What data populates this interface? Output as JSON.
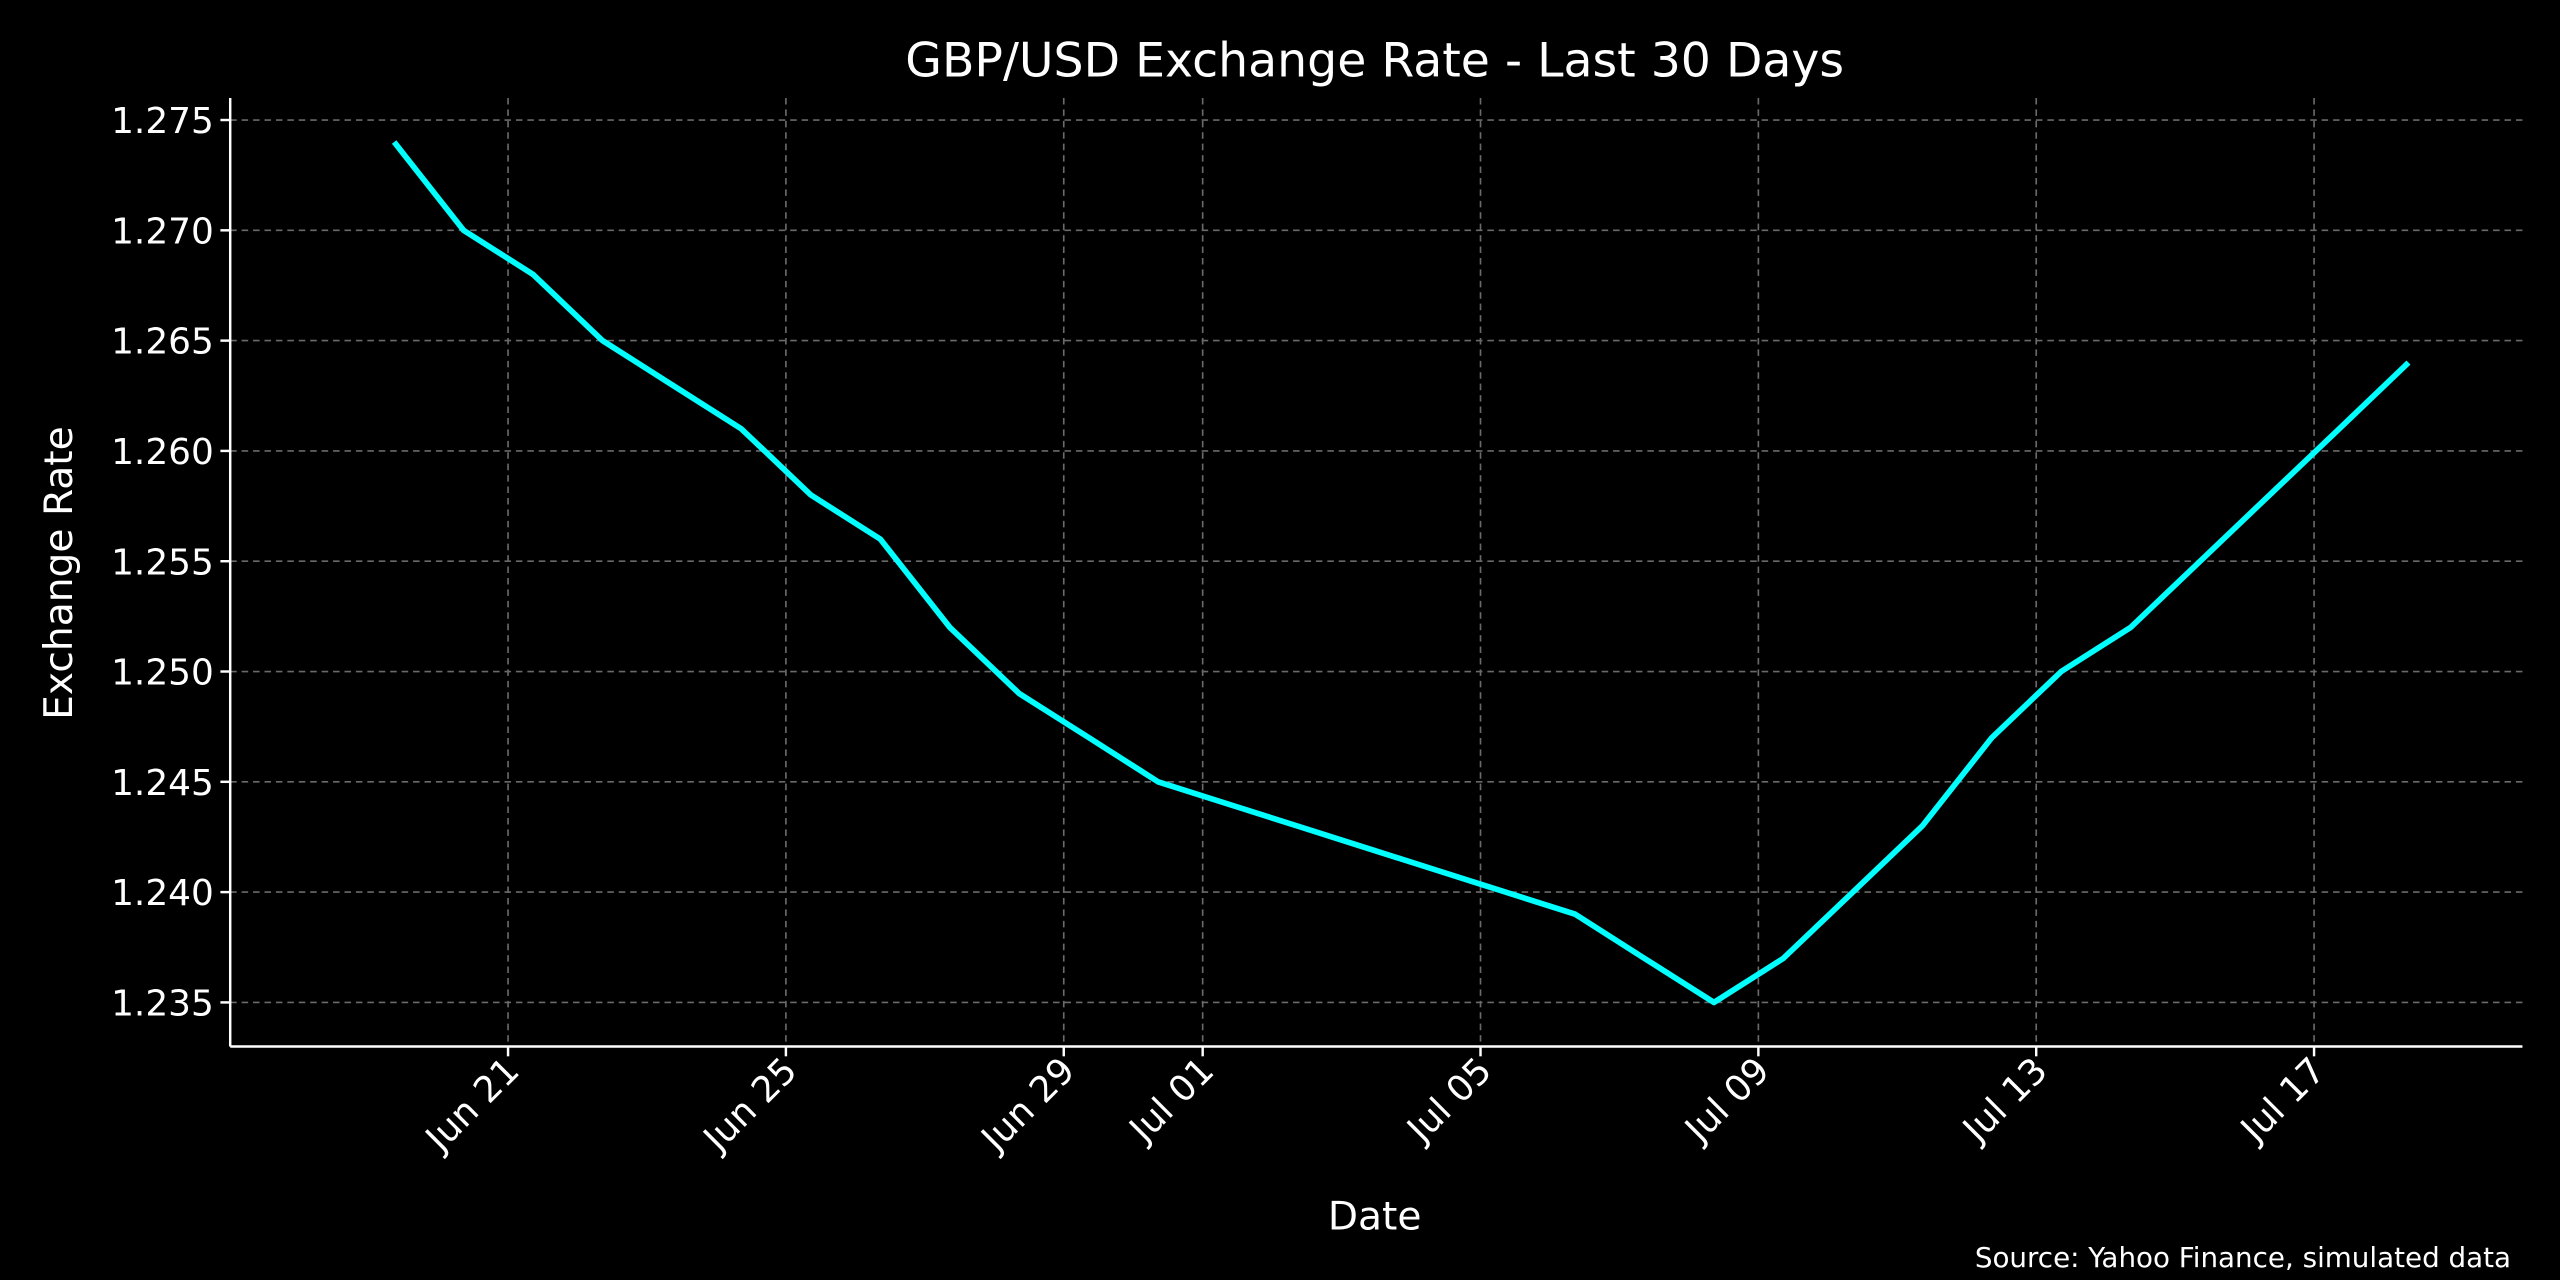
{
  "chart_data": {
    "type": "line",
    "title": "GBP/USD Exchange Rate - Last 30 Days",
    "xlabel": "Date",
    "ylabel": "Exchange Rate",
    "source_note": "Source: Yahoo Finance, simulated data",
    "grid": true,
    "line_color": "#00FFFF",
    "background_color": "#000000",
    "ylim": [
      1.233,
      1.276
    ],
    "xlim": [
      "2024-06-17",
      "2024-07-20"
    ],
    "y_ticks": [
      "1.235",
      "1.240",
      "1.245",
      "1.250",
      "1.255",
      "1.260",
      "1.265",
      "1.270",
      "1.275"
    ],
    "x_ticks": [
      {
        "date": "2024-06-21",
        "label": "Jun 21"
      },
      {
        "date": "2024-06-25",
        "label": "Jun 25"
      },
      {
        "date": "2024-06-29",
        "label": "Jun 29"
      },
      {
        "date": "2024-07-01",
        "label": "Jul 01"
      },
      {
        "date": "2024-07-05",
        "label": "Jul 05"
      },
      {
        "date": "2024-07-09",
        "label": "Jul 09"
      },
      {
        "date": "2024-07-13",
        "label": "Jul 13"
      },
      {
        "date": "2024-07-17",
        "label": "Jul 17"
      }
    ],
    "x": [
      "2024-06-19",
      "2024-06-20",
      "2024-06-21",
      "2024-06-22",
      "2024-06-23",
      "2024-06-24",
      "2024-06-25",
      "2024-06-26",
      "2024-06-27",
      "2024-06-28",
      "2024-06-29",
      "2024-06-30",
      "2024-07-01",
      "2024-07-02",
      "2024-07-03",
      "2024-07-04",
      "2024-07-05",
      "2024-07-06",
      "2024-07-07",
      "2024-07-08",
      "2024-07-09",
      "2024-07-10",
      "2024-07-11",
      "2024-07-12",
      "2024-07-13",
      "2024-07-14",
      "2024-07-15",
      "2024-07-16",
      "2024-07-17",
      "2024-07-18"
    ],
    "values": [
      1.274,
      1.27,
      1.268,
      1.265,
      1.263,
      1.261,
      1.258,
      1.256,
      1.252,
      1.249,
      1.247,
      1.245,
      1.244,
      1.243,
      1.242,
      1.241,
      1.24,
      1.239,
      1.237,
      1.235,
      1.237,
      1.24,
      1.243,
      1.247,
      1.25,
      1.252,
      1.255,
      1.258,
      1.261,
      1.264
    ]
  }
}
